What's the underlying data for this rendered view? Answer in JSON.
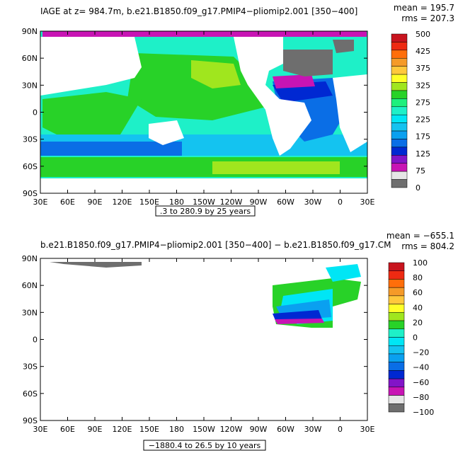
{
  "chart_data": [
    {
      "type": "heatmap",
      "title": "IAGE at z= 984.7m, b.e21.B1850.f09_g17.PMIP4−pliomip2.001 [350−400]",
      "stats": [
        "mean = 195.7",
        "rms = 207.3"
      ],
      "x_ticks": [
        "30E",
        "60E",
        "90E",
        "120E",
        "150E",
        "180",
        "150W",
        "120W",
        "90W",
        "60W",
        "30W",
        "0",
        "30E"
      ],
      "y_ticks": [
        "90N",
        "60N",
        "30N",
        "0",
        "30S",
        "60S",
        "90S"
      ],
      "colorbar_labels": [
        "500",
        "425",
        "375",
        "325",
        "275",
        "225",
        "175",
        "125",
        "75",
        "0"
      ],
      "colors": [
        "#c8141e",
        "#ee2a12",
        "#ff6e0a",
        "#f59a28",
        "#ffc83c",
        "#ffff28",
        "#a0e61e",
        "#28d228",
        "#1ef07d",
        "#1ef0c8",
        "#00e6f5",
        "#14c3f0",
        "#0aa0f0",
        "#0a6ee6",
        "#0028d2",
        "#8214c8",
        "#c814b4",
        "#e6e6e6",
        "#6e6e6e"
      ],
      "range_label": ".3 to 280.9 by 25 years",
      "annotations": {
        "min": 0.3,
        "max": 280.9,
        "interval": 25
      }
    },
    {
      "type": "heatmap",
      "title": "b.e21.B1850.f09_g17.PMIP4−pliomip2.001 [350−400] − b.e21.B1850.f09_g17.CM",
      "stats": [
        "mean = −655.1",
        "rms = 804.2"
      ],
      "x_ticks": [
        "30E",
        "60E",
        "90E",
        "120E",
        "150E",
        "180",
        "150W",
        "120W",
        "90W",
        "60W",
        "30W",
        "0",
        "30E"
      ],
      "y_ticks": [
        "90N",
        "60N",
        "30N",
        "0",
        "30S",
        "60S",
        "90S"
      ],
      "colorbar_labels": [
        "100",
        "80",
        "60",
        "40",
        "20",
        "0",
        "−20",
        "−40",
        "−60",
        "−80",
        "−100"
      ],
      "colors": [
        "#c8141e",
        "#ee2a12",
        "#ff6e0a",
        "#f59a28",
        "#ffc83c",
        "#ffff28",
        "#a0e61e",
        "#28d228",
        "#1ef0c8",
        "#00e6f5",
        "#14c3f0",
        "#0aa0f0",
        "#0a6ee6",
        "#0028d2",
        "#8214c8",
        "#c814b4",
        "#e6e6e6",
        "#6e6e6e"
      ],
      "range_label": "−1880.4 to 26.5 by 10 years",
      "annotations": {
        "min": -1880.4,
        "max": 26.5,
        "interval": 10
      }
    }
  ]
}
